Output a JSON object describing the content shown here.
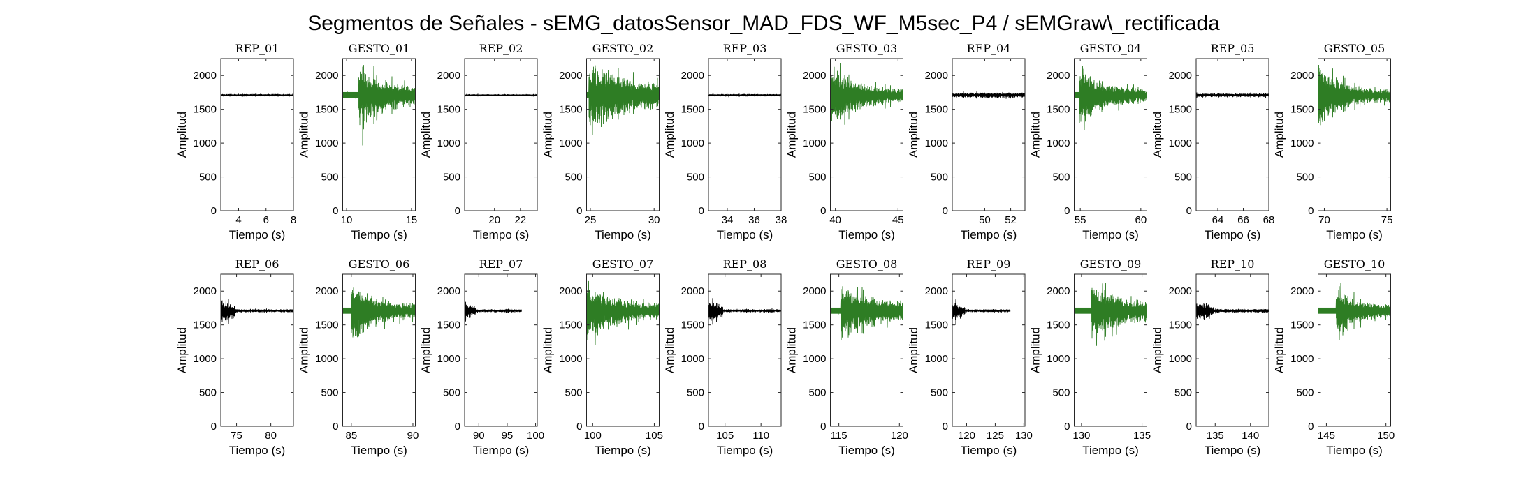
{
  "figure_title": "Segmentos de Señales - sEMG_datosSensor_MAD_FDS_WF_M5sec_P4 / sEMGraw\\_rectificada",
  "colors": {
    "rep": "#000000",
    "gesto": "#2e7d24",
    "axes": "#262626"
  },
  "chart_data": [
    {
      "type": "line",
      "title": "REP_01",
      "kind": "rep",
      "xlim": [
        2.7,
        8
      ],
      "xticks": [
        4,
        6,
        8
      ],
      "ylim": [
        0,
        2250
      ],
      "yticks": [
        0,
        500,
        1000,
        1500,
        2000
      ],
      "xlabel": "Tiempo (s)",
      "ylabel": "Amplitud",
      "x_range": [
        2.7,
        8
      ],
      "baseline": 1710,
      "amp_start": 20,
      "amp_end": 20,
      "active_fraction": 0
    },
    {
      "type": "line",
      "title": "GESTO_01",
      "kind": "gesto",
      "xlim": [
        9.7,
        15.3
      ],
      "xticks": [
        10,
        15
      ],
      "ylim": [
        0,
        2250
      ],
      "yticks": [
        0,
        500,
        1000,
        1500,
        2000
      ],
      "xlabel": "Tiempo (s)",
      "ylabel": "Amplitud",
      "x_range": [
        9.7,
        15.3
      ],
      "baseline": 1710,
      "amp_start": 420,
      "amp_end": 150,
      "active_fraction": 0.78
    },
    {
      "type": "line",
      "title": "REP_02",
      "kind": "rep",
      "xlim": [
        17.7,
        23.3
      ],
      "xticks": [
        20,
        22
      ],
      "ylim": [
        0,
        2250
      ],
      "yticks": [
        0,
        500,
        1000,
        1500,
        2000
      ],
      "xlabel": "Tiempo (s)",
      "ylabel": "Amplitud",
      "x_range": [
        17.7,
        23.3
      ],
      "baseline": 1710,
      "amp_start": 15,
      "amp_end": 15,
      "active_fraction": 0
    },
    {
      "type": "line",
      "title": "GESTO_02",
      "kind": "gesto",
      "xlim": [
        24.7,
        30.4
      ],
      "xticks": [
        25,
        30
      ],
      "ylim": [
        0,
        2250
      ],
      "yticks": [
        0,
        500,
        1000,
        1500,
        2000
      ],
      "xlabel": "Tiempo (s)",
      "ylabel": "Amplitud",
      "x_range": [
        24.7,
        30.4
      ],
      "baseline": 1710,
      "amp_start": 450,
      "amp_end": 200,
      "active_fraction": 0.97
    },
    {
      "type": "line",
      "title": "REP_03",
      "kind": "rep",
      "xlim": [
        32.6,
        38
      ],
      "xticks": [
        34,
        36,
        38
      ],
      "ylim": [
        0,
        2250
      ],
      "yticks": [
        0,
        500,
        1000,
        1500,
        2000
      ],
      "xlabel": "Tiempo (s)",
      "ylabel": "Amplitud",
      "x_range": [
        32.6,
        38
      ],
      "baseline": 1710,
      "amp_start": 25,
      "amp_end": 20,
      "active_fraction": 0
    },
    {
      "type": "line",
      "title": "GESTO_03",
      "kind": "gesto",
      "xlim": [
        39.6,
        45.4
      ],
      "xticks": [
        40,
        45
      ],
      "ylim": [
        0,
        2250
      ],
      "yticks": [
        0,
        500,
        1000,
        1500,
        2000
      ],
      "xlabel": "Tiempo (s)",
      "ylabel": "Amplitud",
      "x_range": [
        39.6,
        45.4
      ],
      "baseline": 1710,
      "amp_start": 440,
      "amp_end": 90,
      "active_fraction": 1
    },
    {
      "type": "line",
      "title": "REP_04",
      "kind": "rep",
      "xlim": [
        47.5,
        53.1
      ],
      "xticks": [
        50,
        52
      ],
      "ylim": [
        0,
        2250
      ],
      "yticks": [
        0,
        500,
        1000,
        1500,
        2000
      ],
      "xlabel": "Tiempo (s)",
      "ylabel": "Amplitud",
      "x_range": [
        47.5,
        53.1
      ],
      "baseline": 1710,
      "amp_start": 40,
      "amp_end": 40,
      "active_fraction": 0
    },
    {
      "type": "line",
      "title": "GESTO_04",
      "kind": "gesto",
      "xlim": [
        54.5,
        60.5
      ],
      "xticks": [
        55,
        60
      ],
      "ylim": [
        0,
        2250
      ],
      "yticks": [
        0,
        500,
        1000,
        1500,
        2000
      ],
      "xlabel": "Tiempo (s)",
      "ylabel": "Amplitud",
      "x_range": [
        54.5,
        60.5
      ],
      "baseline": 1710,
      "amp_start": 440,
      "amp_end": 90,
      "active_fraction": 0.93
    },
    {
      "type": "line",
      "title": "REP_05",
      "kind": "rep",
      "xlim": [
        62.3,
        68
      ],
      "xticks": [
        64,
        66,
        68
      ],
      "ylim": [
        0,
        2250
      ],
      "yticks": [
        0,
        500,
        1000,
        1500,
        2000
      ],
      "xlabel": "Tiempo (s)",
      "ylabel": "Amplitud",
      "x_range": [
        62.3,
        68
      ],
      "baseline": 1710,
      "amp_start": 40,
      "amp_end": 30,
      "active_fraction": 0
    },
    {
      "type": "line",
      "title": "GESTO_05",
      "kind": "gesto",
      "xlim": [
        69.5,
        75.3
      ],
      "xticks": [
        70,
        75
      ],
      "ylim": [
        0,
        2250
      ],
      "yticks": [
        0,
        500,
        1000,
        1500,
        2000
      ],
      "xlabel": "Tiempo (s)",
      "ylabel": "Amplitud",
      "x_range": [
        69.5,
        75.3
      ],
      "baseline": 1710,
      "amp_start": 440,
      "amp_end": 80,
      "active_fraction": 1
    },
    {
      "type": "line",
      "title": "REP_06",
      "kind": "rep",
      "xlim": [
        72.7,
        83.3
      ],
      "xticks": [
        75,
        80
      ],
      "ylim": [
        0,
        2250
      ],
      "yticks": [
        0,
        500,
        1000,
        1500,
        2000
      ],
      "xlabel": "Tiempo (s)",
      "ylabel": "Amplitud",
      "x_range": [
        72.7,
        83.3
      ],
      "baseline": 1710,
      "amp_start": 180,
      "amp_end": 25,
      "active_fraction": 0,
      "burst_fraction": 0.2
    },
    {
      "type": "line",
      "title": "GESTO_06",
      "kind": "gesto",
      "xlim": [
        84.3,
        90.2
      ],
      "xticks": [
        85,
        90
      ],
      "ylim": [
        0,
        2250
      ],
      "yticks": [
        0,
        500,
        1000,
        1500,
        2000
      ],
      "xlabel": "Tiempo (s)",
      "ylabel": "Amplitud",
      "x_range": [
        84.3,
        90.2
      ],
      "baseline": 1710,
      "amp_start": 420,
      "amp_end": 100,
      "active_fraction": 0.88
    },
    {
      "type": "line",
      "title": "REP_07",
      "kind": "rep",
      "xlim": [
        87.5,
        100.3
      ],
      "xticks": [
        90,
        95,
        100
      ],
      "ylim": [
        0,
        2250
      ],
      "yticks": [
        0,
        500,
        1000,
        1500,
        2000
      ],
      "xlabel": "Tiempo (s)",
      "ylabel": "Amplitud",
      "x_range": [
        87.5,
        97.5
      ],
      "baseline": 1710,
      "amp_start": 140,
      "amp_end": 25,
      "active_fraction": 0,
      "burst_fraction": 0.2
    },
    {
      "type": "line",
      "title": "GESTO_07",
      "kind": "gesto",
      "xlim": [
        99.5,
        105.4
      ],
      "xticks": [
        100,
        105
      ],
      "ylim": [
        0,
        2250
      ],
      "yticks": [
        0,
        500,
        1000,
        1500,
        2000
      ],
      "xlabel": "Tiempo (s)",
      "ylabel": "Amplitud",
      "x_range": [
        99.5,
        105.4
      ],
      "baseline": 1710,
      "amp_start": 330,
      "amp_end": 130,
      "active_fraction": 1
    },
    {
      "type": "line",
      "title": "REP_08",
      "kind": "rep",
      "xlim": [
        102.7,
        112.8
      ],
      "xticks": [
        105,
        110
      ],
      "ylim": [
        0,
        2250
      ],
      "yticks": [
        0,
        500,
        1000,
        1500,
        2000
      ],
      "xlabel": "Tiempo (s)",
      "ylabel": "Amplitud",
      "x_range": [
        102.7,
        112.8
      ],
      "baseline": 1710,
      "amp_start": 170,
      "amp_end": 25,
      "active_fraction": 0,
      "burst_fraction": 0.2
    },
    {
      "type": "line",
      "title": "GESTO_08",
      "kind": "gesto",
      "xlim": [
        114.3,
        120.3
      ],
      "xticks": [
        115,
        120
      ],
      "ylim": [
        0,
        2250
      ],
      "yticks": [
        0,
        500,
        1000,
        1500,
        2000
      ],
      "xlabel": "Tiempo (s)",
      "ylabel": "Amplitud",
      "x_range": [
        114.3,
        120.3
      ],
      "baseline": 1710,
      "amp_start": 400,
      "amp_end": 150,
      "active_fraction": 0.86
    },
    {
      "type": "line",
      "title": "REP_09",
      "kind": "rep",
      "xlim": [
        117.5,
        130.2
      ],
      "xticks": [
        120,
        125,
        130
      ],
      "ylim": [
        0,
        2250
      ],
      "yticks": [
        0,
        500,
        1000,
        1500,
        2000
      ],
      "xlabel": "Tiempo (s)",
      "ylabel": "Amplitud",
      "x_range": [
        117.5,
        127.6
      ],
      "baseline": 1710,
      "amp_start": 160,
      "amp_end": 25,
      "active_fraction": 0,
      "burst_fraction": 0.22
    },
    {
      "type": "line",
      "title": "GESTO_09",
      "kind": "gesto",
      "xlim": [
        129.4,
        135.4
      ],
      "xticks": [
        130,
        135
      ],
      "ylim": [
        0,
        2250
      ],
      "yticks": [
        0,
        500,
        1000,
        1500,
        2000
      ],
      "xlabel": "Tiempo (s)",
      "ylabel": "Amplitud",
      "x_range": [
        129.4,
        135.4
      ],
      "baseline": 1710,
      "amp_start": 380,
      "amp_end": 150,
      "active_fraction": 0.76
    },
    {
      "type": "line",
      "title": "REP_10",
      "kind": "rep",
      "xlim": [
        132.3,
        142.6
      ],
      "xticks": [
        135,
        140
      ],
      "ylim": [
        0,
        2250
      ],
      "yticks": [
        0,
        500,
        1000,
        1500,
        2000
      ],
      "xlabel": "Tiempo (s)",
      "ylabel": "Amplitud",
      "x_range": [
        132.3,
        142.6
      ],
      "baseline": 1710,
      "amp_start": 160,
      "amp_end": 30,
      "active_fraction": 0,
      "burst_fraction": 0.25
    },
    {
      "type": "line",
      "title": "GESTO_10",
      "kind": "gesto",
      "xlim": [
        144.3,
        150.4
      ],
      "xticks": [
        145,
        150
      ],
      "ylim": [
        0,
        2250
      ],
      "yticks": [
        0,
        500,
        1000,
        1500,
        2000
      ],
      "xlabel": "Tiempo (s)",
      "ylabel": "Amplitud",
      "x_range": [
        144.3,
        150.4
      ],
      "baseline": 1710,
      "amp_start": 380,
      "amp_end": 80,
      "active_fraction": 0.75
    }
  ]
}
